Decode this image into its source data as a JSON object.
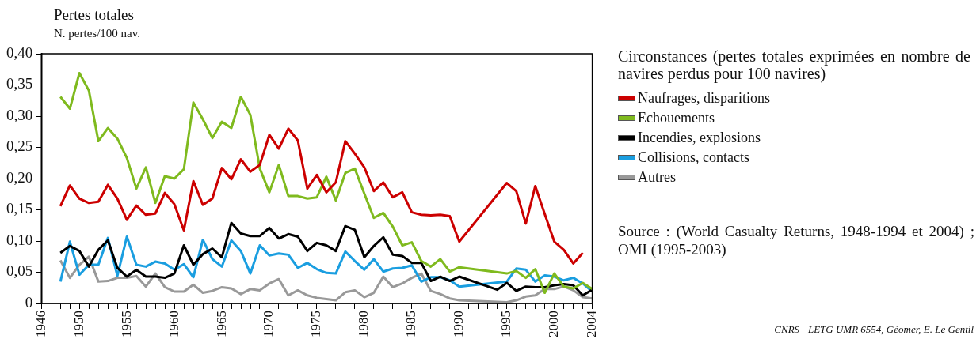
{
  "chart_data": {
    "type": "line",
    "title": "Pertes totales",
    "ylabel": "N. pertes/100 nav.",
    "legend_title": "Circonstances (pertes totales exprimées en nombre de navires perdus pour 100 navires)",
    "x": [
      1948,
      1949,
      1950,
      1951,
      1952,
      1953,
      1954,
      1955,
      1956,
      1957,
      1958,
      1959,
      1960,
      1961,
      1962,
      1963,
      1964,
      1965,
      1966,
      1967,
      1968,
      1969,
      1970,
      1971,
      1972,
      1973,
      1974,
      1975,
      1976,
      1977,
      1978,
      1979,
      1980,
      1981,
      1982,
      1983,
      1984,
      1985,
      1986,
      1987,
      1988,
      1989,
      1990,
      1991,
      1992,
      1993,
      1994,
      1995,
      1996,
      1997,
      1998,
      1999,
      2000,
      2001,
      2002,
      2003,
      2004
    ],
    "series": [
      {
        "name": "Naufrages, disparitions",
        "color": "#cc0000",
        "values": [
          0.156,
          0.189,
          0.168,
          0.161,
          0.163,
          0.19,
          0.168,
          0.134,
          0.157,
          0.142,
          0.144,
          0.177,
          0.159,
          0.117,
          0.196,
          0.158,
          0.168,
          0.217,
          0.199,
          0.231,
          0.211,
          0.222,
          0.27,
          0.248,
          0.28,
          0.261,
          0.184,
          0.206,
          0.178,
          0.194,
          0.26,
          0.24,
          0.218,
          0.18,
          0.194,
          0.17,
          0.178,
          0.146,
          0.142,
          0.141,
          0.142,
          0.14,
          0.099,
          null,
          null,
          null,
          null,
          0.193,
          0.18,
          0.128,
          0.188,
          0.143,
          0.099,
          0.086,
          0.064,
          0.081,
          null
        ]
      },
      {
        "name": "Echouements",
        "color": "#7fba1e",
        "values": [
          0.331,
          0.312,
          0.369,
          0.341,
          0.26,
          0.281,
          0.264,
          0.233,
          0.184,
          0.218,
          0.161,
          0.204,
          0.2,
          0.215,
          0.322,
          0.295,
          0.265,
          0.291,
          0.281,
          0.331,
          0.302,
          0.216,
          0.178,
          0.222,
          0.172,
          0.172,
          0.168,
          0.17,
          0.203,
          0.165,
          0.209,
          0.216,
          0.176,
          0.137,
          0.145,
          0.123,
          0.093,
          0.098,
          0.068,
          0.059,
          0.071,
          0.051,
          0.058,
          null,
          null,
          null,
          null,
          0.048,
          0.052,
          0.041,
          0.055,
          0.017,
          0.048,
          0.027,
          0.024,
          0.033,
          0.023
        ]
      },
      {
        "name": "Incendies, explosions",
        "color": "#000000",
        "values": [
          0.081,
          0.092,
          0.084,
          0.059,
          0.086,
          0.101,
          0.057,
          0.043,
          0.054,
          0.043,
          0.043,
          0.041,
          0.048,
          0.093,
          0.062,
          0.079,
          0.088,
          0.074,
          0.129,
          0.112,
          0.108,
          0.108,
          0.121,
          0.104,
          0.111,
          0.107,
          0.084,
          0.097,
          0.093,
          0.084,
          0.124,
          0.118,
          0.074,
          0.092,
          0.106,
          0.078,
          0.076,
          0.065,
          0.065,
          0.036,
          0.043,
          0.036,
          0.043,
          null,
          null,
          null,
          0.022,
          0.033,
          0.02,
          0.027,
          0.026,
          0.026,
          0.029,
          0.031,
          0.029,
          0.013,
          0.022
        ]
      },
      {
        "name": "Collisions, contacts",
        "color": "#1a9ee0",
        "values": [
          0.035,
          0.099,
          0.046,
          0.062,
          0.062,
          0.105,
          0.044,
          0.107,
          0.062,
          0.059,
          0.067,
          0.064,
          0.054,
          0.063,
          0.042,
          0.102,
          0.071,
          0.059,
          0.101,
          0.084,
          0.048,
          0.093,
          0.077,
          0.08,
          0.078,
          0.057,
          0.065,
          0.055,
          0.049,
          0.048,
          0.083,
          0.068,
          0.054,
          0.071,
          0.051,
          0.056,
          0.057,
          0.061,
          0.035,
          0.042,
          0.042,
          0.037,
          0.027,
          null,
          null,
          null,
          null,
          0.035,
          0.056,
          0.054,
          0.035,
          0.045,
          0.043,
          0.037,
          0.041,
          0.032,
          0.019
        ]
      },
      {
        "name": "Autres",
        "color": "#999999",
        "values": [
          0.069,
          0.041,
          0.062,
          0.075,
          0.035,
          0.036,
          0.041,
          0.041,
          0.044,
          0.027,
          0.048,
          0.026,
          0.019,
          0.019,
          0.03,
          0.017,
          0.02,
          0.026,
          0.024,
          0.015,
          0.023,
          0.021,
          0.032,
          0.039,
          0.013,
          0.021,
          0.013,
          0.009,
          0.007,
          0.005,
          0.018,
          0.021,
          0.01,
          0.017,
          0.043,
          0.026,
          0.032,
          0.041,
          0.048,
          0.02,
          0.015,
          0.008,
          0.005,
          null,
          null,
          null,
          null,
          0.002,
          0.005,
          0.011,
          0.013,
          0.023,
          0.023,
          0.027,
          0.021,
          0.01,
          0.008
        ]
      }
    ],
    "xlim": [
      1946,
      2004
    ],
    "xticks": [
      1946,
      {
        "value": 1947,
        "label": null
      },
      {
        "value": 1948,
        "label": null
      },
      {
        "value": 1949,
        "label": null
      },
      1950,
      {
        "value": 1951,
        "label": null
      },
      {
        "value": 1952,
        "label": null
      },
      {
        "value": 1953,
        "label": null
      },
      {
        "value": 1954,
        "label": null
      },
      1955,
      {
        "value": 1956,
        "label": null
      },
      {
        "value": 1957,
        "label": null
      },
      {
        "value": 1958,
        "label": null
      },
      {
        "value": 1959,
        "label": null
      },
      1960,
      {
        "value": 1961,
        "label": null
      },
      {
        "value": 1962,
        "label": null
      },
      {
        "value": 1963,
        "label": null
      },
      {
        "value": 1964,
        "label": null
      },
      1965,
      {
        "value": 1966,
        "label": null
      },
      {
        "value": 1967,
        "label": null
      },
      {
        "value": 1968,
        "label": null
      },
      {
        "value": 1969,
        "label": null
      },
      1970,
      {
        "value": 1971,
        "label": null
      },
      {
        "value": 1972,
        "label": null
      },
      {
        "value": 1973,
        "label": null
      },
      {
        "value": 1974,
        "label": null
      },
      1975,
      {
        "value": 1976,
        "label": null
      },
      {
        "value": 1977,
        "label": null
      },
      {
        "value": 1978,
        "label": null
      },
      {
        "value": 1979,
        "label": null
      },
      1980,
      {
        "value": 1981,
        "label": null
      },
      {
        "value": 1982,
        "label": null
      },
      {
        "value": 1983,
        "label": null
      },
      {
        "value": 1984,
        "label": null
      },
      1985,
      {
        "value": 1986,
        "label": null
      },
      {
        "value": 1987,
        "label": null
      },
      {
        "value": 1988,
        "label": null
      },
      {
        "value": 1989,
        "label": null
      },
      1990,
      {
        "value": 1991,
        "label": null
      },
      {
        "value": 1992,
        "label": null
      },
      {
        "value": 1993,
        "label": null
      },
      {
        "value": 1994,
        "label": null
      },
      1995,
      {
        "value": 1996,
        "label": null
      },
      {
        "value": 1997,
        "label": null
      },
      {
        "value": 1998,
        "label": null
      },
      {
        "value": 1999,
        "label": null
      },
      2000,
      {
        "value": 2001,
        "label": null
      },
      {
        "value": 2002,
        "label": null
      },
      {
        "value": 2003,
        "label": null
      },
      2004
    ],
    "ylim": [
      0,
      0.4
    ],
    "yticks": [
      0,
      {
        "value": 0.05,
        "label": "0,05"
      },
      {
        "value": 0.1,
        "label": "0,10"
      },
      {
        "value": 0.15,
        "label": "0,15"
      },
      {
        "value": 0.2,
        "label": "0,20"
      },
      {
        "value": 0.25,
        "label": "0,25"
      },
      {
        "value": 0.3,
        "label": "0,30"
      },
      {
        "value": 0.35,
        "label": "0,35"
      },
      {
        "value": 0.4,
        "label": "0,40"
      }
    ],
    "grid": false,
    "legend": "right",
    "marker": "none",
    "line_style": "solid",
    "annotations": [
      "Source : (World Casualty Returns, 1948-1994 et 2004) ; OMI (1995-2003)",
      "CNRS - LETG UMR 6554, Géomer, E. Le Gentil"
    ]
  }
}
